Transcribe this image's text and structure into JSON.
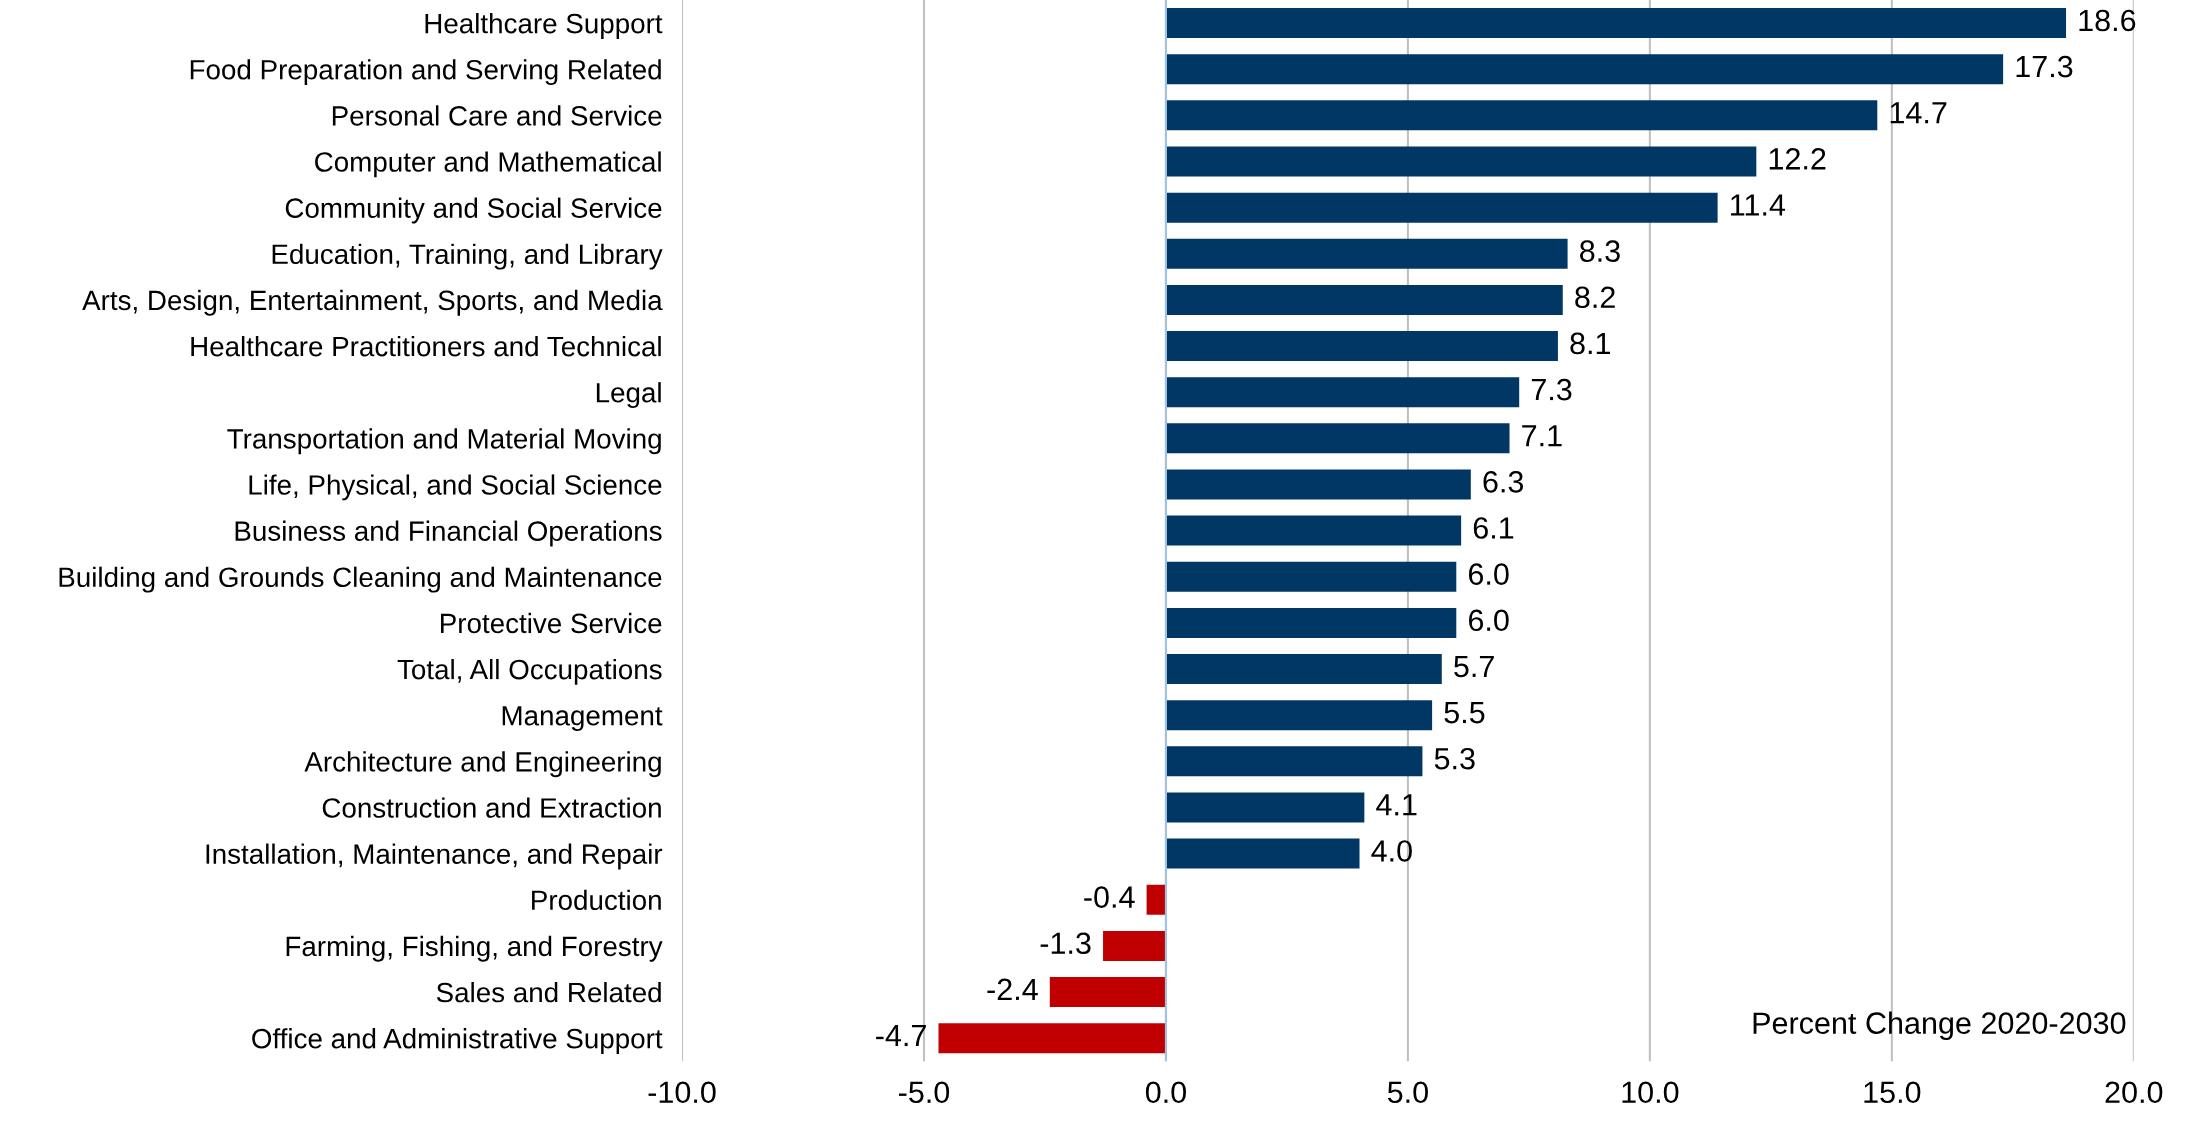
{
  "chart_data": {
    "type": "bar",
    "orientation": "horizontal",
    "categories": [
      "Healthcare Support",
      "Food Preparation and Serving Related",
      "Personal Care and Service",
      "Computer and Mathematical",
      "Community and Social Service",
      "Education, Training, and Library",
      "Arts, Design, Entertainment, Sports, and Media",
      "Healthcare Practitioners and Technical",
      "Legal",
      "Transportation and Material Moving",
      "Life, Physical, and Social Science",
      "Business and Financial Operations",
      "Building and Grounds Cleaning and Maintenance",
      "Protective Service",
      "Total, All Occupations",
      "Management",
      "Architecture and Engineering",
      "Construction and Extraction",
      "Installation, Maintenance, and Repair",
      "Production",
      "Farming, Fishing, and Forestry",
      "Sales and Related",
      "Office and Administrative Support"
    ],
    "values": [
      18.6,
      17.3,
      14.7,
      12.2,
      11.4,
      8.3,
      8.2,
      8.1,
      7.3,
      7.1,
      6.3,
      6.1,
      6.0,
      6.0,
      5.7,
      5.5,
      5.3,
      4.1,
      4.0,
      -0.4,
      -1.3,
      -2.4,
      -4.7
    ],
    "value_labels": [
      "18.6",
      "17.3",
      "14.7",
      "12.2",
      "11.4",
      "8.3",
      "8.2",
      "8.1",
      "7.3",
      "7.1",
      "6.3",
      "6.1",
      "6.0",
      "6.0",
      "5.7",
      "5.5",
      "5.3",
      "4.1",
      "4.0",
      "-0.4",
      "-1.3",
      "-2.4",
      "-4.7"
    ],
    "colors": [
      "#003764",
      "#003764",
      "#003764",
      "#003764",
      "#003764",
      "#003764",
      "#003764",
      "#003764",
      "#003764",
      "#003764",
      "#003764",
      "#003764",
      "#003764",
      "#003764",
      "#003764",
      "#003764",
      "#003764",
      "#003764",
      "#003764",
      "#c00000",
      "#c00000",
      "#c00000",
      "#c00000"
    ],
    "xlim": [
      -10,
      20
    ],
    "xticks": [
      {
        "value": -10,
        "label": "-10.0"
      },
      {
        "value": -5,
        "label": "-5.0"
      },
      {
        "value": 0,
        "label": "0.0"
      },
      {
        "value": 5,
        "label": "5.0"
      },
      {
        "value": 10,
        "label": "10.0"
      },
      {
        "value": 15,
        "label": "15.0"
      },
      {
        "value": 20,
        "label": "20.0"
      }
    ],
    "grid": "x",
    "ref_lines": [
      {
        "axis": "x",
        "value": 0,
        "color": "#9dc3e6"
      }
    ],
    "annotations": [
      "Percent Change 2020-2030"
    ]
  }
}
